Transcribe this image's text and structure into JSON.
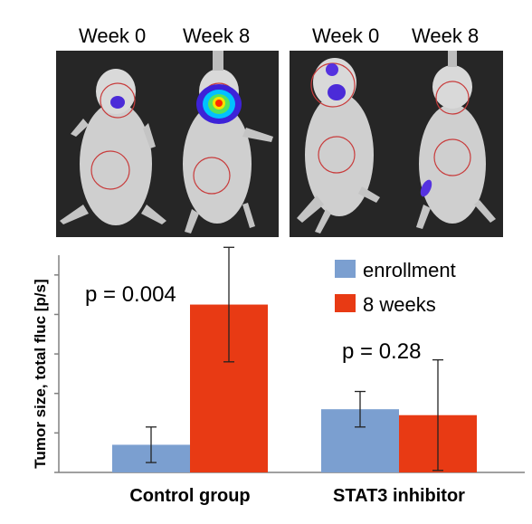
{
  "panel_labels": {
    "left_week0": "Week 0",
    "left_week8": "Week 8",
    "right_week0": "Week 0",
    "right_week8": "Week 8"
  },
  "colors": {
    "enrollment": "#7b9fd0",
    "eight_weeks": "#e83a14",
    "axis": "#808080",
    "photo_bg": "#262626",
    "roi_circle": "#c83c3c"
  },
  "chart_data": {
    "type": "bar",
    "ylabel": "Tumor size, total fluc [p/s]",
    "xlabel": "",
    "categories": [
      "Control group",
      "STAT3 inhibitor"
    ],
    "series": [
      {
        "name": "enrollment",
        "values": [
          0.7,
          1.6
        ],
        "errors": [
          0.45,
          0.45
        ]
      },
      {
        "name": "8 weeks",
        "values": [
          4.25,
          1.45
        ],
        "errors": [
          1.45,
          1.4
        ]
      }
    ],
    "ylim": [
      0,
      5.5
    ],
    "yticks": [
      0,
      1,
      2,
      3,
      4,
      5
    ],
    "tick_labels_shown": false,
    "legend_position": "top-right",
    "grid": false,
    "annotations": [
      "p = 0.004",
      "p = 0.28"
    ]
  }
}
